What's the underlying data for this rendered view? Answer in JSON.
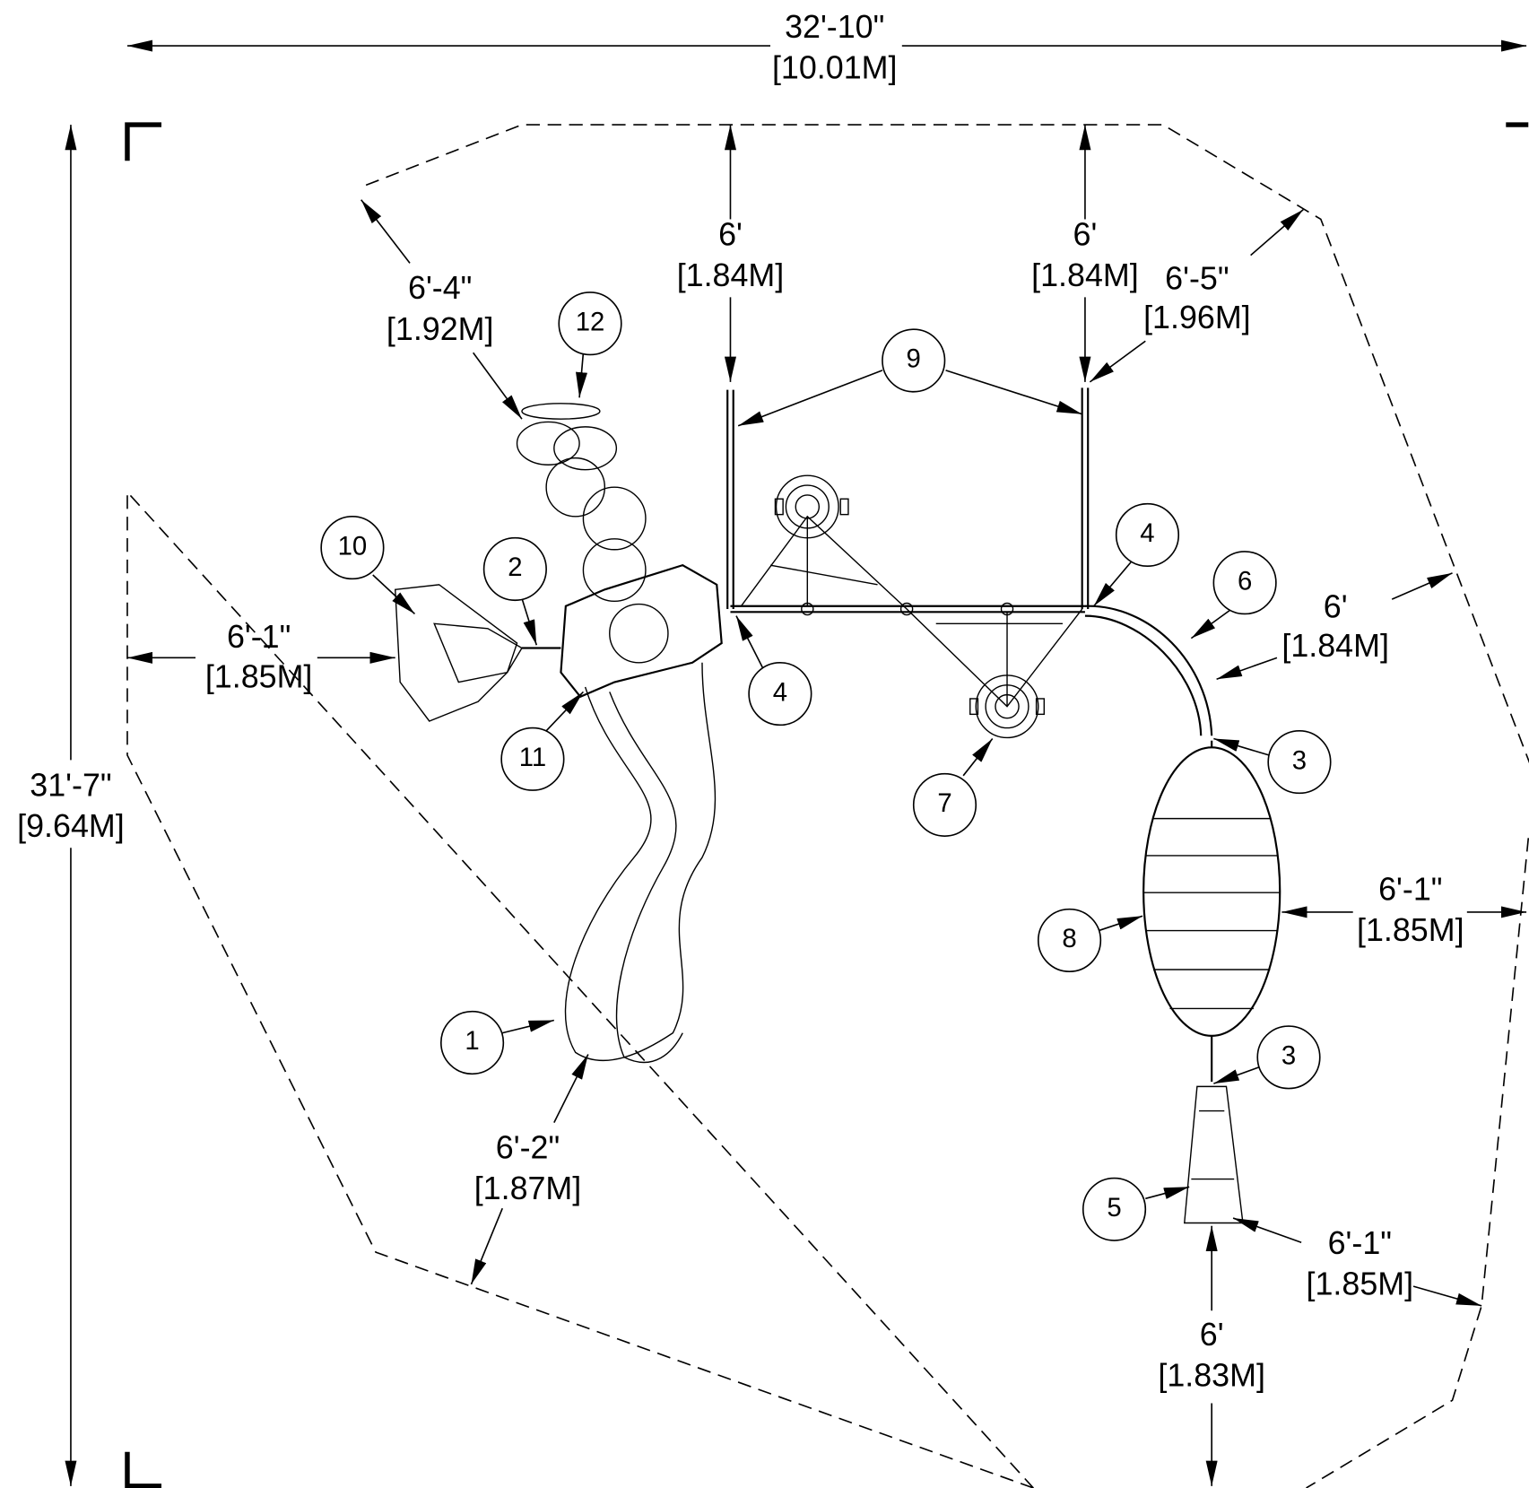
{
  "dimensions": [
    {
      "feet": "32'-10\"",
      "meters": "[10.01M]"
    },
    {
      "feet": "31'-7\"",
      "meters": "[9.64M]"
    },
    {
      "feet": "6'",
      "meters": "[1.84M]"
    },
    {
      "feet": "6'",
      "meters": "[1.84M]"
    },
    {
      "feet": "6'-4\"",
      "meters": "[1.92M]"
    },
    {
      "feet": "6'-5\"",
      "meters": "[1.96M]"
    },
    {
      "feet": "6'-1\"",
      "meters": "[1.85M]"
    },
    {
      "feet": "6'",
      "meters": "[1.84M]"
    },
    {
      "feet": "6'-1\"",
      "meters": "[1.85M]"
    },
    {
      "feet": "6'-2\"",
      "meters": "[1.87M]"
    },
    {
      "feet": "6'-1\"",
      "meters": "[1.85M]"
    },
    {
      "feet": "6'",
      "meters": "[1.83M]"
    }
  ],
  "callouts": [
    "12",
    "9",
    "10",
    "2",
    "4",
    "6",
    "4",
    "11",
    "3",
    "7",
    "8",
    "1",
    "3",
    "5"
  ]
}
